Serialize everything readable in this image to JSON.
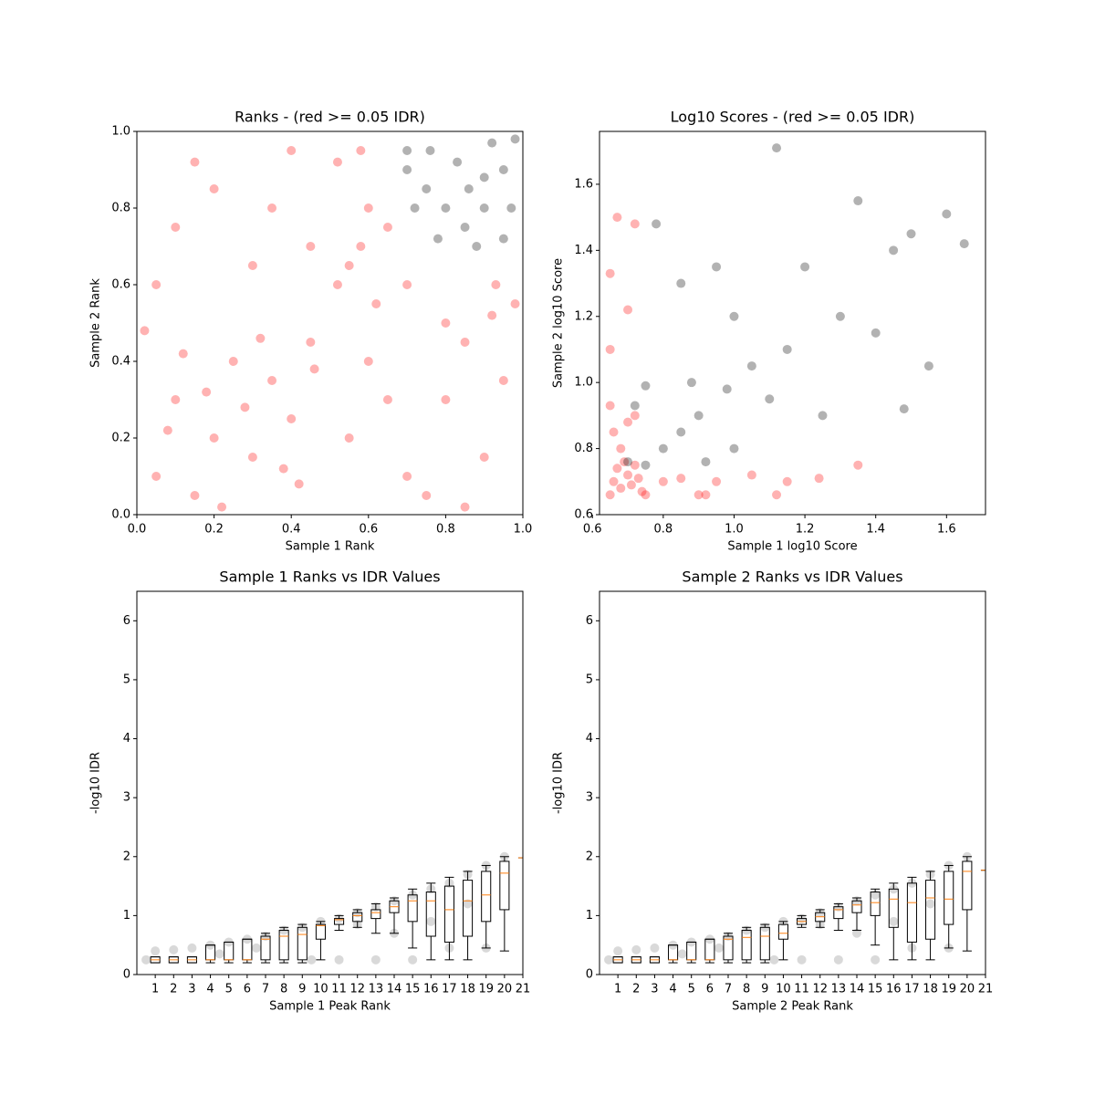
{
  "chart_data": [
    {
      "type": "scatter",
      "title": "Ranks - (red >= 0.05 IDR)",
      "x_label": "Sample 1 Rank",
      "y_label": "Sample 2 Rank",
      "xlim": [
        0,
        1
      ],
      "ylim": [
        0,
        1
      ],
      "xticks": [
        {
          "value": 0,
          "label": "0.0"
        },
        0.2,
        0.4,
        0.6,
        0.8,
        {
          "value": 1,
          "label": "1.0"
        }
      ],
      "yticks": [
        {
          "value": 0,
          "label": "0.0"
        },
        0.2,
        0.4,
        0.6,
        0.8,
        {
          "value": 1,
          "label": "1.0"
        }
      ],
      "alpha": 0.3,
      "series": [
        {
          "color": "#ff0000",
          "x": [
            0.05,
            0.1,
            0.15,
            0.2,
            0.25,
            0.3,
            0.35,
            0.4,
            0.45,
            0.02,
            0.12,
            0.22,
            0.32,
            0.42,
            0.08,
            0.18,
            0.28,
            0.38,
            0.46,
            0.05,
            0.1,
            0.2,
            0.3,
            0.4,
            0.15,
            0.35,
            0.45,
            0.52,
            0.58,
            0.62,
            0.55,
            0.65,
            0.6,
            0.52,
            0.58,
            0.55,
            0.6,
            0.7,
            0.8,
            0.85,
            0.75,
            0.9,
            0.95,
            0.98,
            0.93,
            0.92,
            0.7,
            0.8,
            0.65,
            0.85
          ],
          "y": [
            0.1,
            0.3,
            0.05,
            0.2,
            0.4,
            0.15,
            0.35,
            0.25,
            0.45,
            0.48,
            0.42,
            0.02,
            0.46,
            0.08,
            0.22,
            0.32,
            0.28,
            0.12,
            0.38,
            0.6,
            0.75,
            0.85,
            0.65,
            0.95,
            0.92,
            0.8,
            0.7,
            0.6,
            0.7,
            0.55,
            0.65,
            0.75,
            0.8,
            0.92,
            0.95,
            0.2,
            0.4,
            0.1,
            0.3,
            0.45,
            0.05,
            0.15,
            0.35,
            0.55,
            0.6,
            0.52,
            0.6,
            0.5,
            0.3,
            0.02
          ]
        },
        {
          "color": "#000000",
          "x": [
            0.7,
            0.75,
            0.8,
            0.85,
            0.9,
            0.95,
            0.98,
            0.92,
            0.72,
            0.78,
            0.88,
            0.7,
            0.83,
            0.9,
            0.97,
            0.95,
            0.86,
            0.76
          ],
          "y": [
            0.9,
            0.85,
            0.8,
            0.75,
            0.8,
            0.9,
            0.98,
            0.97,
            0.8,
            0.72,
            0.7,
            0.95,
            0.92,
            0.88,
            0.8,
            0.72,
            0.85,
            0.95
          ]
        }
      ]
    },
    {
      "type": "scatter",
      "title": "Log10 Scores - (red >= 0.05 IDR)",
      "x_label": "Sample 1 log10 Score",
      "y_label": "Sample 2 log10 Score",
      "xlim": [
        0.62,
        1.71
      ],
      "ylim": [
        0.6,
        1.76
      ],
      "xticks": [
        0.6,
        0.8,
        {
          "value": 1,
          "label": "1.0"
        },
        1.2,
        1.4,
        1.6
      ],
      "yticks": [
        0.6,
        0.8,
        {
          "value": 1,
          "label": "1.0"
        },
        1.2,
        1.4,
        1.6
      ],
      "alpha": 0.3,
      "series": [
        {
          "color": "#ff0000",
          "x": [
            0.65,
            0.66,
            0.68,
            0.7,
            0.72,
            0.74,
            0.67,
            0.69,
            0.71,
            0.73,
            0.75,
            0.65,
            0.66,
            0.68,
            0.7,
            0.72,
            0.8,
            0.85,
            0.9,
            0.92,
            0.95,
            1.05,
            1.15,
            1.24,
            0.67,
            0.72,
            0.65,
            0.7,
            0.65,
            1.35,
            1.12
          ],
          "y": [
            0.66,
            0.7,
            0.68,
            0.72,
            0.75,
            0.67,
            0.74,
            0.76,
            0.69,
            0.71,
            0.66,
            0.93,
            0.85,
            0.8,
            0.88,
            0.9,
            0.7,
            0.71,
            0.66,
            0.66,
            0.7,
            0.72,
            0.7,
            0.71,
            1.5,
            1.48,
            1.33,
            1.22,
            1.1,
            0.75,
            0.66
          ]
        },
        {
          "color": "#000000",
          "x": [
            0.7,
            0.72,
            0.75,
            0.8,
            0.85,
            0.9,
            0.92,
            0.98,
            1.0,
            1.05,
            1.1,
            1.15,
            1.2,
            1.25,
            1.3,
            1.35,
            1.4,
            1.45,
            1.5,
            1.55,
            1.6,
            1.65,
            1.12,
            1.48,
            0.85,
            0.78,
            0.95,
            1.0,
            0.88,
            0.75
          ],
          "y": [
            0.76,
            0.93,
            0.75,
            0.8,
            0.85,
            0.9,
            0.76,
            0.98,
            0.8,
            1.05,
            0.95,
            1.1,
            1.35,
            0.9,
            1.2,
            1.55,
            1.15,
            1.4,
            1.45,
            1.05,
            1.51,
            1.42,
            1.71,
            0.92,
            1.3,
            1.48,
            1.35,
            1.2,
            1.0,
            0.99
          ]
        }
      ]
    },
    {
      "type": "box",
      "title": "Sample 1 Ranks vs IDR Values",
      "x_label": "Sample 1 Peak Rank",
      "y_label": "-log10 IDR",
      "xlim": [
        0,
        21
      ],
      "ylim": [
        0,
        6.5
      ],
      "xticks": [
        1,
        2,
        3,
        4,
        5,
        6,
        7,
        8,
        9,
        10,
        11,
        12,
        13,
        14,
        15,
        16,
        17,
        18,
        19,
        20,
        21
      ],
      "yticks": [
        0,
        1,
        2,
        3,
        4,
        5,
        6
      ],
      "alpha": 0.15,
      "point_color": "#000000",
      "median_color": "#ff7f0e",
      "points": {
        "x": [
          0.5,
          1,
          2,
          3,
          4,
          5,
          6,
          7,
          8,
          9,
          10,
          11,
          12,
          13,
          14,
          15,
          16,
          17,
          18,
          19,
          20,
          9.5,
          11,
          13,
          15,
          17,
          19,
          14,
          16,
          18,
          12,
          6.5,
          4.5
        ],
        "y": [
          0.25,
          0.4,
          0.42,
          0.45,
          0.5,
          0.55,
          0.6,
          0.65,
          0.75,
          0.8,
          0.9,
          0.95,
          1.05,
          1.15,
          1.25,
          1.35,
          1.45,
          1.55,
          1.7,
          1.85,
          2.0,
          0.25,
          0.25,
          0.25,
          0.25,
          0.45,
          0.45,
          0.7,
          0.9,
          1.2,
          0.85,
          0.45,
          0.35
        ]
      },
      "positions": [
        1,
        2,
        3,
        4,
        5,
        6,
        7,
        8,
        9,
        10,
        11,
        12,
        13,
        14,
        15,
        16,
        17,
        18,
        19,
        20,
        21
      ],
      "whislo": [
        0.2,
        0.2,
        0.2,
        0.2,
        0.2,
        0.2,
        0.2,
        0.2,
        0.2,
        0.25,
        0.75,
        0.8,
        0.7,
        0.7,
        0.45,
        0.25,
        0.25,
        0.25,
        0.45,
        0.4,
        1.98
      ],
      "q1": [
        0.2,
        0.2,
        0.2,
        0.25,
        0.25,
        0.25,
        0.25,
        0.25,
        0.25,
        0.6,
        0.85,
        0.9,
        0.95,
        1.05,
        0.9,
        0.65,
        0.55,
        0.65,
        0.9,
        1.1,
        1.98
      ],
      "med": [
        0.25,
        0.25,
        0.25,
        0.25,
        0.25,
        0.25,
        0.6,
        0.65,
        0.68,
        0.83,
        0.93,
        1.0,
        1.05,
        1.15,
        1.25,
        1.25,
        1.1,
        1.25,
        1.35,
        1.72,
        1.98
      ],
      "q3": [
        0.3,
        0.3,
        0.3,
        0.5,
        0.55,
        0.6,
        0.65,
        0.75,
        0.8,
        0.85,
        0.95,
        1.05,
        1.1,
        1.25,
        1.35,
        1.4,
        1.5,
        1.6,
        1.75,
        1.92,
        1.98
      ],
      "whishi": [
        0.3,
        0.3,
        0.3,
        0.5,
        0.55,
        0.6,
        0.7,
        0.8,
        0.85,
        0.9,
        1.0,
        1.1,
        1.2,
        1.3,
        1.45,
        1.55,
        1.65,
        1.75,
        1.85,
        2.0,
        1.98
      ]
    },
    {
      "type": "box",
      "title": "Sample 2 Ranks vs IDR Values",
      "x_label": "Sample 2 Peak Rank",
      "y_label": "-log10 IDR",
      "xlim": [
        0,
        21
      ],
      "ylim": [
        0,
        6.5
      ],
      "xticks": [
        1,
        2,
        3,
        4,
        5,
        6,
        7,
        8,
        9,
        10,
        11,
        12,
        13,
        14,
        15,
        16,
        17,
        18,
        19,
        20,
        21
      ],
      "yticks": [
        0,
        1,
        2,
        3,
        4,
        5,
        6
      ],
      "alpha": 0.15,
      "point_color": "#000000",
      "median_color": "#ff7f0e",
      "points": {
        "x": [
          0.5,
          1,
          2,
          3,
          4,
          5,
          6,
          7,
          8,
          9,
          10,
          11,
          12,
          13,
          14,
          15,
          16,
          17,
          18,
          19,
          20,
          9.5,
          11,
          13,
          15,
          17,
          19,
          14,
          16,
          18,
          12,
          6.5,
          4.5
        ],
        "y": [
          0.25,
          0.4,
          0.42,
          0.45,
          0.5,
          0.55,
          0.6,
          0.65,
          0.75,
          0.8,
          0.9,
          0.95,
          1.05,
          1.15,
          1.25,
          1.35,
          1.45,
          1.55,
          1.7,
          1.85,
          2.0,
          0.25,
          0.25,
          0.25,
          0.25,
          0.45,
          0.45,
          0.7,
          0.9,
          1.2,
          0.85,
          0.45,
          0.35
        ]
      },
      "positions": [
        1,
        2,
        3,
        4,
        5,
        6,
        7,
        8,
        9,
        10,
        11,
        12,
        13,
        14,
        15,
        16,
        17,
        18,
        19,
        20,
        21
      ],
      "whislo": [
        0.2,
        0.2,
        0.2,
        0.2,
        0.2,
        0.2,
        0.2,
        0.2,
        0.2,
        0.25,
        0.8,
        0.8,
        0.75,
        0.75,
        0.5,
        0.25,
        0.25,
        0.25,
        0.45,
        0.4,
        1.77
      ],
      "q1": [
        0.2,
        0.2,
        0.2,
        0.25,
        0.25,
        0.25,
        0.25,
        0.25,
        0.25,
        0.6,
        0.85,
        0.9,
        0.95,
        1.05,
        1.0,
        0.8,
        0.55,
        0.6,
        0.85,
        1.1,
        1.77
      ],
      "med": [
        0.25,
        0.25,
        0.25,
        0.25,
        0.25,
        0.25,
        0.6,
        0.63,
        0.65,
        0.7,
        0.9,
        0.98,
        1.1,
        1.18,
        1.22,
        1.28,
        1.22,
        1.3,
        1.28,
        1.75,
        1.77
      ],
      "q3": [
        0.3,
        0.3,
        0.3,
        0.5,
        0.55,
        0.6,
        0.65,
        0.75,
        0.8,
        0.85,
        0.95,
        1.05,
        1.15,
        1.25,
        1.4,
        1.45,
        1.55,
        1.6,
        1.75,
        1.92,
        1.77
      ],
      "whishi": [
        0.3,
        0.3,
        0.3,
        0.5,
        0.55,
        0.6,
        0.7,
        0.8,
        0.85,
        0.9,
        1.0,
        1.1,
        1.2,
        1.3,
        1.45,
        1.55,
        1.65,
        1.75,
        1.85,
        2.0,
        1.77
      ]
    }
  ]
}
